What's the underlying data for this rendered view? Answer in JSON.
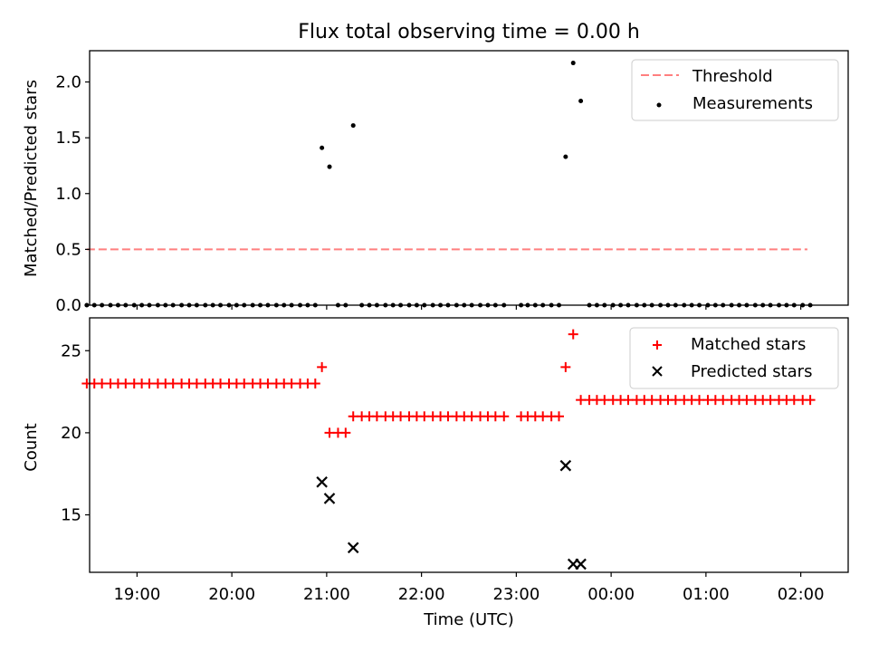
{
  "title": "Flux total observing time = 0.00 h",
  "colors": {
    "threshold": "#ff7f7f",
    "measurements": "#000000",
    "matched": "#ff0000",
    "predicted": "#000000"
  },
  "chart_data": [
    {
      "type": "scatter",
      "ylabel": "Matched/Predicted stars",
      "xlim": [
        18.5,
        2.5
      ],
      "ylim": [
        0,
        2.28
      ],
      "x_axis": "time (UTC), decimal hours, wrapping past midnight",
      "ytick_labels": [
        "0.0",
        "0.5",
        "1.0",
        "1.5",
        "2.0"
      ],
      "legend": {
        "placement": "top-right",
        "entries": [
          "Threshold",
          "Measurements"
        ]
      },
      "threshold": {
        "name": "Threshold",
        "y": 0.5,
        "x_start": 18.47,
        "x_end": 2.07,
        "style": "dashed"
      },
      "series": [
        {
          "name": "Measurements",
          "points": [
            [
              18.47,
              0
            ],
            [
              18.55,
              0
            ],
            [
              18.63,
              0
            ],
            [
              18.72,
              0
            ],
            [
              18.8,
              0
            ],
            [
              18.88,
              0
            ],
            [
              18.97,
              0
            ],
            [
              19.05,
              0
            ],
            [
              19.13,
              0
            ],
            [
              19.22,
              0
            ],
            [
              19.3,
              0
            ],
            [
              19.38,
              0
            ],
            [
              19.47,
              0
            ],
            [
              19.55,
              0
            ],
            [
              19.63,
              0
            ],
            [
              19.72,
              0
            ],
            [
              19.8,
              0
            ],
            [
              19.88,
              0
            ],
            [
              19.97,
              0
            ],
            [
              20.05,
              0
            ],
            [
              20.13,
              0
            ],
            [
              20.22,
              0
            ],
            [
              20.3,
              0
            ],
            [
              20.38,
              0
            ],
            [
              20.47,
              0
            ],
            [
              20.55,
              0
            ],
            [
              20.63,
              0
            ],
            [
              20.72,
              0
            ],
            [
              20.8,
              0
            ],
            [
              20.88,
              0
            ],
            [
              20.95,
              1.41
            ],
            [
              21.03,
              1.24
            ],
            [
              21.12,
              0
            ],
            [
              21.2,
              0
            ],
            [
              21.28,
              1.61
            ],
            [
              21.37,
              0
            ],
            [
              21.45,
              0
            ],
            [
              21.53,
              0
            ],
            [
              21.62,
              0
            ],
            [
              21.7,
              0
            ],
            [
              21.78,
              0
            ],
            [
              21.87,
              0
            ],
            [
              21.95,
              0
            ],
            [
              22.03,
              0
            ],
            [
              22.12,
              0
            ],
            [
              22.2,
              0
            ],
            [
              22.28,
              0
            ],
            [
              22.37,
              0
            ],
            [
              22.45,
              0
            ],
            [
              22.53,
              0
            ],
            [
              22.62,
              0
            ],
            [
              22.7,
              0
            ],
            [
              22.78,
              0
            ],
            [
              22.87,
              0
            ],
            [
              23.05,
              0
            ],
            [
              23.12,
              0
            ],
            [
              23.2,
              0
            ],
            [
              23.28,
              0
            ],
            [
              23.37,
              0
            ],
            [
              23.45,
              0
            ],
            [
              23.52,
              1.33
            ],
            [
              23.6,
              2.17
            ],
            [
              23.68,
              1.83
            ],
            [
              23.77,
              0
            ],
            [
              23.85,
              0
            ],
            [
              23.93,
              0
            ],
            [
              0.02,
              0
            ],
            [
              0.1,
              0
            ],
            [
              0.18,
              0
            ],
            [
              0.27,
              0
            ],
            [
              0.35,
              0
            ],
            [
              0.43,
              0
            ],
            [
              0.52,
              0
            ],
            [
              0.6,
              0
            ],
            [
              0.68,
              0
            ],
            [
              0.77,
              0
            ],
            [
              0.85,
              0
            ],
            [
              0.93,
              0
            ],
            [
              1.02,
              0
            ],
            [
              1.1,
              0
            ],
            [
              1.18,
              0
            ],
            [
              1.27,
              0
            ],
            [
              1.35,
              0
            ],
            [
              1.43,
              0
            ],
            [
              1.52,
              0
            ],
            [
              1.6,
              0
            ],
            [
              1.68,
              0
            ],
            [
              1.77,
              0
            ],
            [
              1.85,
              0
            ],
            [
              1.93,
              0
            ],
            [
              2.02,
              0
            ],
            [
              2.1,
              0
            ]
          ]
        }
      ]
    },
    {
      "type": "scatter",
      "xlabel": "Time (UTC)",
      "ylabel": "Count",
      "xlim": [
        18.5,
        2.5
      ],
      "ylim": [
        11.5,
        27
      ],
      "xtick_labels": [
        "19:00",
        "20:00",
        "21:00",
        "22:00",
        "23:00",
        "00:00",
        "01:00",
        "02:00"
      ],
      "ytick_labels": [
        "15",
        "20",
        "25"
      ],
      "legend": {
        "placement": "top-right",
        "entries": [
          "Matched stars",
          "Predicted stars"
        ]
      },
      "series": [
        {
          "name": "Matched stars",
          "marker": "plus",
          "points": [
            [
              18.47,
              23
            ],
            [
              18.55,
              23
            ],
            [
              18.63,
              23
            ],
            [
              18.72,
              23
            ],
            [
              18.8,
              23
            ],
            [
              18.88,
              23
            ],
            [
              18.97,
              23
            ],
            [
              19.05,
              23
            ],
            [
              19.13,
              23
            ],
            [
              19.22,
              23
            ],
            [
              19.3,
              23
            ],
            [
              19.38,
              23
            ],
            [
              19.47,
              23
            ],
            [
              19.55,
              23
            ],
            [
              19.63,
              23
            ],
            [
              19.72,
              23
            ],
            [
              19.8,
              23
            ],
            [
              19.88,
              23
            ],
            [
              19.97,
              23
            ],
            [
              20.05,
              23
            ],
            [
              20.13,
              23
            ],
            [
              20.22,
              23
            ],
            [
              20.3,
              23
            ],
            [
              20.38,
              23
            ],
            [
              20.47,
              23
            ],
            [
              20.55,
              23
            ],
            [
              20.63,
              23
            ],
            [
              20.72,
              23
            ],
            [
              20.8,
              23
            ],
            [
              20.88,
              23
            ],
            [
              20.95,
              24
            ],
            [
              21.03,
              20
            ],
            [
              21.12,
              20
            ],
            [
              21.2,
              20
            ],
            [
              21.28,
              21
            ],
            [
              21.37,
              21
            ],
            [
              21.45,
              21
            ],
            [
              21.53,
              21
            ],
            [
              21.62,
              21
            ],
            [
              21.7,
              21
            ],
            [
              21.78,
              21
            ],
            [
              21.87,
              21
            ],
            [
              21.95,
              21
            ],
            [
              22.03,
              21
            ],
            [
              22.12,
              21
            ],
            [
              22.2,
              21
            ],
            [
              22.28,
              21
            ],
            [
              22.37,
              21
            ],
            [
              22.45,
              21
            ],
            [
              22.53,
              21
            ],
            [
              22.62,
              21
            ],
            [
              22.7,
              21
            ],
            [
              22.78,
              21
            ],
            [
              22.87,
              21
            ],
            [
              23.05,
              21
            ],
            [
              23.12,
              21
            ],
            [
              23.2,
              21
            ],
            [
              23.28,
              21
            ],
            [
              23.37,
              21
            ],
            [
              23.45,
              21
            ],
            [
              23.52,
              24
            ],
            [
              23.6,
              26
            ],
            [
              23.68,
              22
            ],
            [
              23.77,
              22
            ],
            [
              23.85,
              22
            ],
            [
              23.93,
              22
            ],
            [
              0.02,
              22
            ],
            [
              0.1,
              22
            ],
            [
              0.18,
              22
            ],
            [
              0.27,
              22
            ],
            [
              0.35,
              22
            ],
            [
              0.43,
              22
            ],
            [
              0.52,
              22
            ],
            [
              0.6,
              22
            ],
            [
              0.68,
              22
            ],
            [
              0.77,
              22
            ],
            [
              0.85,
              22
            ],
            [
              0.93,
              22
            ],
            [
              1.02,
              22
            ],
            [
              1.1,
              22
            ],
            [
              1.18,
              22
            ],
            [
              1.27,
              22
            ],
            [
              1.35,
              22
            ],
            [
              1.43,
              22
            ],
            [
              1.52,
              22
            ],
            [
              1.6,
              22
            ],
            [
              1.68,
              22
            ],
            [
              1.77,
              22
            ],
            [
              1.85,
              22
            ],
            [
              1.93,
              22
            ],
            [
              2.02,
              22
            ],
            [
              2.1,
              22
            ]
          ]
        },
        {
          "name": "Predicted stars",
          "marker": "x",
          "points": [
            [
              20.95,
              17
            ],
            [
              21.03,
              16
            ],
            [
              21.28,
              13
            ],
            [
              23.52,
              18
            ],
            [
              23.6,
              12
            ],
            [
              23.68,
              12
            ]
          ]
        }
      ]
    }
  ]
}
